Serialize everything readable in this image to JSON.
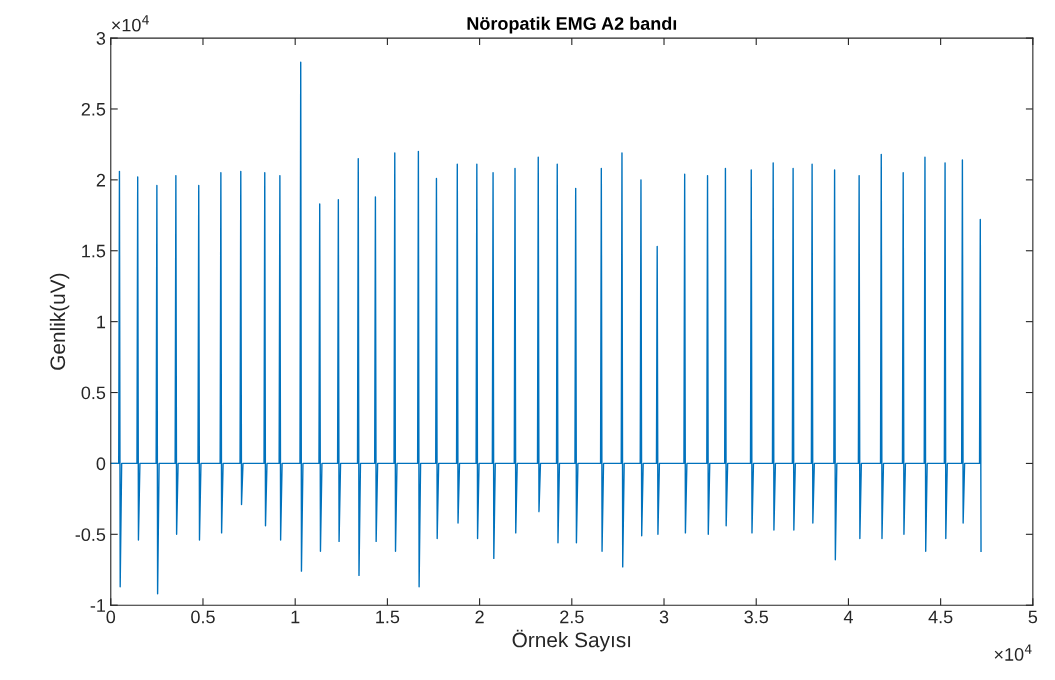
{
  "chart_data": {
    "type": "line",
    "title": "Nöropatik EMG A2 bandı",
    "xlabel": "Örnek Sayısı",
    "ylabel": "Genlik(uV)",
    "annotations": [
      "×10$^{4}$",
      "×10$^{4}$"
    ],
    "xlim": [
      0,
      5
    ],
    "ylim": [
      -1,
      3
    ],
    "xticks": [
      0,
      0.5,
      1,
      1.5,
      2,
      2.5,
      3,
      3.5,
      4,
      4.5,
      5
    ],
    "yticks": [
      -1,
      -0.5,
      0,
      0.5,
      1,
      1.5,
      2,
      2.5,
      3
    ],
    "marker": "none",
    "line_style": "solid",
    "x": [
      0,
      0.043,
      0.047,
      0.051,
      0.059,
      0.142,
      0.146,
      0.15,
      0.158,
      0.246,
      0.25,
      0.254,
      0.262,
      0.349,
      0.353,
      0.357,
      0.365,
      0.473,
      0.477,
      0.481,
      0.489,
      0.593,
      0.597,
      0.601,
      0.609,
      0.701,
      0.705,
      0.709,
      0.717,
      0.831,
      0.835,
      0.839,
      0.847,
      0.913,
      0.917,
      0.921,
      0.929,
      1.026,
      1.03,
      1.034,
      1.042,
      1.129,
      1.133,
      1.137,
      1.145,
      1.23,
      1.234,
      1.238,
      1.246,
      1.338,
      1.342,
      1.346,
      1.354,
      1.431,
      1.435,
      1.439,
      1.447,
      1.536,
      1.54,
      1.544,
      1.552,
      1.664,
      1.668,
      1.672,
      1.68,
      1.762,
      1.766,
      1.77,
      1.778,
      1.875,
      1.879,
      1.883,
      1.891,
      1.981,
      1.985,
      1.989,
      1.997,
      2.069,
      2.073,
      2.077,
      2.085,
      2.188,
      2.192,
      2.196,
      2.204,
      2.314,
      2.318,
      2.322,
      2.33,
      2.417,
      2.421,
      2.425,
      2.433,
      2.517,
      2.521,
      2.525,
      2.533,
      2.656,
      2.66,
      2.664,
      2.672,
      2.768,
      2.772,
      2.776,
      2.784,
      2.871,
      2.875,
      2.879,
      2.887,
      2.959,
      2.963,
      2.967,
      2.975,
      3.108,
      3.112,
      3.116,
      3.124,
      3.232,
      3.236,
      3.24,
      3.248,
      3.329,
      3.333,
      3.337,
      3.345,
      3.469,
      3.473,
      3.477,
      3.485,
      3.588,
      3.592,
      3.596,
      3.604,
      3.696,
      3.7,
      3.704,
      3.712,
      3.799,
      3.803,
      3.807,
      3.815,
      3.921,
      3.925,
      3.929,
      3.937,
      4.054,
      4.058,
      4.062,
      4.07,
      4.174,
      4.178,
      4.182,
      4.19,
      4.293,
      4.297,
      4.301,
      4.309,
      4.411,
      4.415,
      4.419,
      4.427,
      4.52,
      4.524,
      4.528,
      4.536,
      4.614,
      4.618,
      4.622,
      4.63,
      4.711,
      4.715,
      4.719
    ],
    "series": [
      {
        "color": "#0072bd",
        "values": [
          0,
          0,
          2.06,
          -0.87,
          0,
          0,
          2.02,
          -0.54,
          0,
          0,
          1.96,
          -0.92,
          0,
          0,
          2.03,
          -0.5,
          0,
          0,
          1.96,
          -0.54,
          0,
          0,
          2.05,
          -0.49,
          0,
          0,
          2.06,
          -0.29,
          0,
          0,
          2.05,
          -0.44,
          0,
          0,
          2.03,
          -0.54,
          0,
          0,
          2.83,
          -0.76,
          0,
          0,
          1.83,
          -0.62,
          0,
          0,
          1.86,
          -0.55,
          0,
          0,
          2.15,
          -0.79,
          0,
          0,
          1.88,
          -0.55,
          0,
          0,
          2.19,
          -0.62,
          0,
          0,
          2.2,
          -0.87,
          0,
          0,
          2.01,
          -0.53,
          0,
          0,
          2.11,
          -0.42,
          0,
          0,
          2.11,
          -0.53,
          0,
          0,
          2.05,
          -0.67,
          0,
          0,
          2.08,
          -0.49,
          0,
          0,
          2.16,
          -0.34,
          0,
          0,
          2.11,
          -0.56,
          0,
          0,
          1.94,
          -0.56,
          0,
          0,
          2.08,
          -0.62,
          0,
          0,
          2.19,
          -0.73,
          0,
          0,
          2,
          -0.51,
          0,
          0,
          1.53,
          -0.5,
          0,
          0,
          2.04,
          -0.49,
          0,
          0,
          2.03,
          -0.5,
          0,
          0,
          2.08,
          -0.44,
          0,
          0,
          2.07,
          -0.49,
          0,
          0,
          2.12,
          -0.47,
          0,
          0,
          2.08,
          -0.47,
          0,
          0,
          2.11,
          -0.42,
          0,
          0,
          2.07,
          -0.68,
          0,
          0,
          2.03,
          -0.53,
          0,
          0,
          2.18,
          -0.53,
          0,
          0,
          2.05,
          -0.5,
          0,
          0,
          2.16,
          -0.62,
          0,
          0,
          2.12,
          -0.53,
          0,
          0,
          2.14,
          -0.42,
          0,
          0,
          1.72,
          -0.62
        ]
      }
    ]
  }
}
